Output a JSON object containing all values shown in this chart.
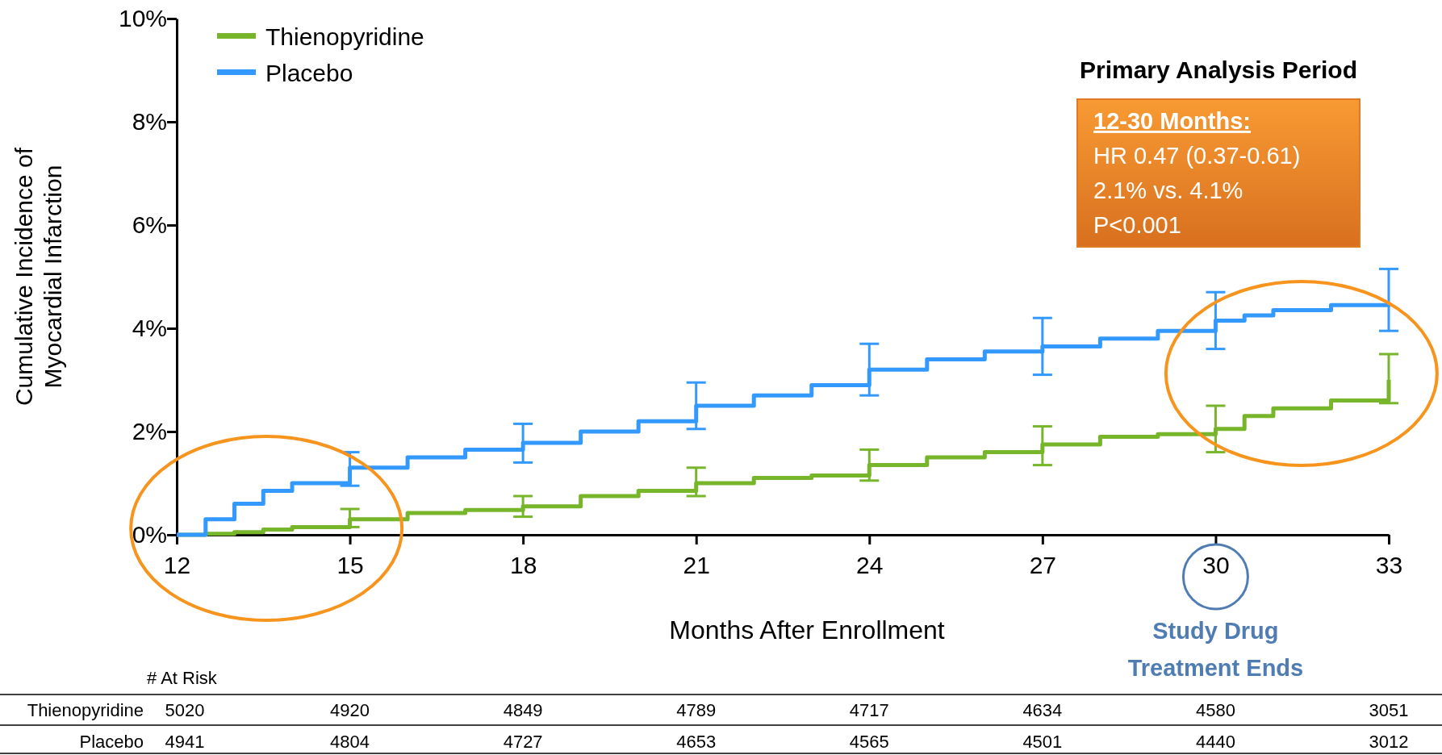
{
  "chart_data": {
    "type": "step",
    "xlabel": "Months After Enrollment",
    "ylabel": "Cumulative Incidence of Myocardial Infarction",
    "x": [
      12,
      12.5,
      13,
      13.5,
      14,
      15,
      16,
      17,
      18,
      19,
      20,
      21,
      22,
      23,
      24,
      25,
      26,
      27,
      28,
      29,
      30,
      30.5,
      31,
      32,
      33
    ],
    "series": [
      {
        "name": "Thienopyridine",
        "color": "#77b52a",
        "values": [
          0,
          0.02,
          0.05,
          0.1,
          0.15,
          0.3,
          0.42,
          0.48,
          0.55,
          0.75,
          0.85,
          1.0,
          1.1,
          1.15,
          1.35,
          1.5,
          1.6,
          1.75,
          1.9,
          1.95,
          2.05,
          2.3,
          2.45,
          2.6,
          3.0
        ],
        "errors": [
          null,
          null,
          null,
          null,
          null,
          [
            0.15,
            0.5
          ],
          null,
          null,
          [
            0.35,
            0.75
          ],
          null,
          null,
          [
            0.75,
            1.3
          ],
          null,
          null,
          [
            1.05,
            1.65
          ],
          null,
          null,
          [
            1.35,
            2.1
          ],
          null,
          null,
          [
            1.6,
            2.5
          ],
          null,
          null,
          null,
          [
            2.55,
            3.5
          ]
        ]
      },
      {
        "name": "Placebo",
        "color": "#3399ff",
        "values": [
          0,
          0.3,
          0.6,
          0.85,
          1.0,
          1.3,
          1.5,
          1.65,
          1.78,
          2.0,
          2.2,
          2.5,
          2.7,
          2.9,
          3.2,
          3.4,
          3.55,
          3.65,
          3.8,
          3.95,
          4.15,
          4.25,
          4.35,
          4.45,
          4.5
        ],
        "errors": [
          null,
          null,
          null,
          null,
          null,
          [
            0.95,
            1.6
          ],
          null,
          null,
          [
            1.4,
            2.15
          ],
          null,
          null,
          [
            2.05,
            2.95
          ],
          null,
          null,
          [
            2.7,
            3.7
          ],
          null,
          null,
          [
            3.1,
            4.2
          ],
          null,
          null,
          [
            3.6,
            4.7
          ],
          null,
          null,
          null,
          [
            3.95,
            5.15
          ]
        ]
      }
    ],
    "xlim": [
      12,
      33
    ],
    "xticks": [
      12,
      15,
      18,
      21,
      24,
      27,
      30,
      33
    ],
    "ylim": [
      0,
      10
    ],
    "yticks": [
      {
        "value": 0,
        "label": "0%"
      },
      {
        "value": 2,
        "label": "2%"
      },
      {
        "value": 4,
        "label": "4%"
      },
      {
        "value": 6,
        "label": "6%"
      },
      {
        "value": 8,
        "label": "8%"
      },
      {
        "value": 10,
        "label": "10%"
      }
    ],
    "legend": "top left",
    "annotations": [
      "Primary Analysis Period",
      "12-30 Months:",
      "HR 0.47 (0.37-0.61)",
      "2.1% vs. 4.1%",
      "P<0.001",
      "Study Drug",
      "Treatment Ends",
      "# At Risk",
      "Thienopyridine",
      "5020",
      "4920",
      "4849",
      "4789",
      "4717",
      "4634",
      "4580",
      "3051",
      "Placebo",
      "4941",
      "4804",
      "4727",
      "4653",
      "4565",
      "4501",
      "4440",
      "3012"
    ]
  }
}
